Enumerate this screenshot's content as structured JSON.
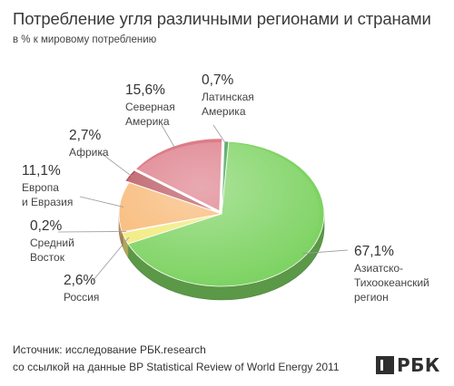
{
  "title": "Потребление угля различными регионами и странами",
  "subtitle": "в % к мировому потреблению",
  "chart_data": {
    "type": "pie",
    "title": "Потребление угля различными регионами и странами",
    "subtitle": "в % к мировому потреблению",
    "slices": [
      {
        "pct": "67,1%",
        "value": 67.1,
        "label_lines": [
          "Азиатско-",
          "Тихоокеанский",
          "регион"
        ],
        "color": "#7ed363"
      },
      {
        "pct": "2,6%",
        "value": 2.6,
        "label_lines": [
          "Россия"
        ],
        "color": "#f2ea7c"
      },
      {
        "pct": "0,2%",
        "value": 0.2,
        "label_lines": [
          "Средний",
          "Восток"
        ],
        "color": "#d29a3c"
      },
      {
        "pct": "11,1%",
        "value": 11.1,
        "label_lines": [
          "Европа",
          "и Евразия"
        ],
        "color": "#f8b875"
      },
      {
        "pct": "2,7%",
        "value": 2.7,
        "label_lines": [
          "Африка"
        ],
        "color": "#b8545e"
      },
      {
        "pct": "15,6%",
        "value": 15.6,
        "label_lines": [
          "Северная",
          "Америка"
        ],
        "color": "#dd7c88"
      },
      {
        "pct": "0,7%",
        "value": 0.7,
        "label_lines": [
          "Латинская",
          "Америка"
        ],
        "color": "#3f9d52"
      }
    ]
  },
  "source": {
    "line1": "Источник: исследование РБК.research",
    "line2": "со ссылкой на данные BP Statistical Review of World Energy 2011"
  },
  "logo_text": "РБК"
}
